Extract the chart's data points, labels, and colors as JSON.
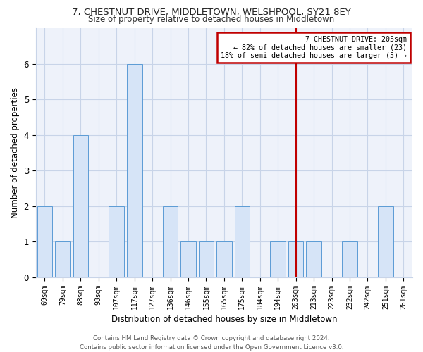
{
  "title_line1": "7, CHESTNUT DRIVE, MIDDLETOWN, WELSHPOOL, SY21 8EY",
  "title_line2": "Size of property relative to detached houses in Middletown",
  "xlabel": "Distribution of detached houses by size in Middletown",
  "ylabel": "Number of detached properties",
  "categories": [
    "69sqm",
    "79sqm",
    "88sqm",
    "98sqm",
    "107sqm",
    "117sqm",
    "127sqm",
    "136sqm",
    "146sqm",
    "155sqm",
    "165sqm",
    "175sqm",
    "184sqm",
    "194sqm",
    "203sqm",
    "213sqm",
    "223sqm",
    "232sqm",
    "242sqm",
    "251sqm",
    "261sqm"
  ],
  "values": [
    2,
    1,
    4,
    0,
    2,
    6,
    0,
    2,
    1,
    1,
    1,
    2,
    0,
    1,
    1,
    1,
    0,
    1,
    0,
    2,
    0
  ],
  "bar_color": "#d6e4f7",
  "bar_edge_color": "#5b9bd5",
  "highlight_index": 14,
  "highlight_line_color": "#c00000",
  "ylim": [
    0,
    7
  ],
  "yticks": [
    0,
    1,
    2,
    3,
    4,
    5,
    6
  ],
  "grid_color": "#c8d4e8",
  "bg_color": "#eef2fa",
  "annotation_text": "7 CHESTNUT DRIVE: 205sqm\n← 82% of detached houses are smaller (23)\n18% of semi-detached houses are larger (5) →",
  "annotation_box_color": "#c00000",
  "footer_line1": "Contains HM Land Registry data © Crown copyright and database right 2024.",
  "footer_line2": "Contains public sector information licensed under the Open Government Licence v3.0."
}
